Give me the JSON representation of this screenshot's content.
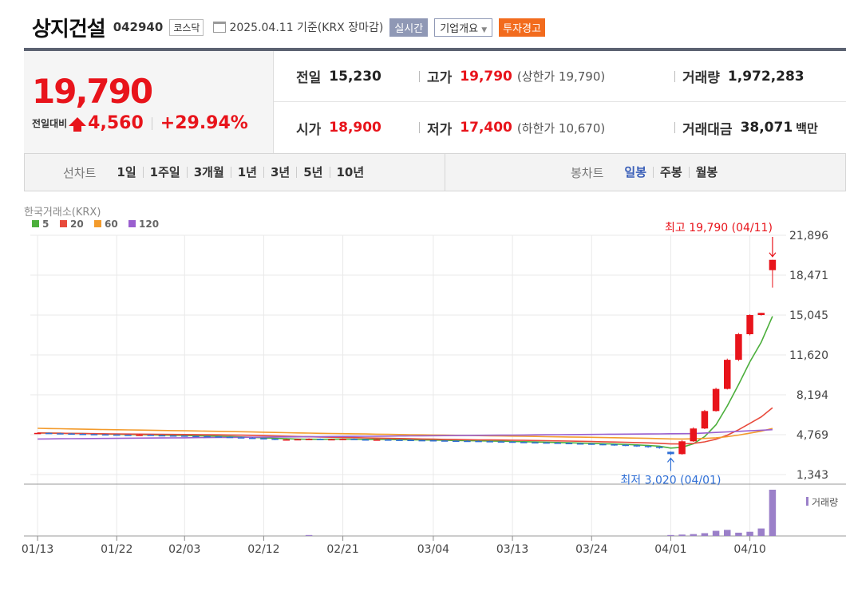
{
  "header": {
    "name": "상지건설",
    "code": "042940",
    "market": "코스닥",
    "date_text": "2025.04.11  기준(KRX 장마감)",
    "realtime_label": "실시간",
    "corp_label": "기업개요",
    "warning_label": "투자경고"
  },
  "price": {
    "current": "19,790",
    "change_label": "전일대비",
    "change": "4,560",
    "change_pct": "+29.94%"
  },
  "stats": {
    "prev_label": "전일",
    "prev": "15,230",
    "high_label": "고가",
    "high": "19,790",
    "upper_limit": "(상한가 19,790)",
    "volume_label": "거래량",
    "volume": "1,972,283",
    "open_label": "시가",
    "open": "18,900",
    "low_label": "저가",
    "low": "17,400",
    "lower_limit": "(하한가 10,670)",
    "amount_label": "거래대금",
    "amount": "38,071",
    "amount_unit": "백만"
  },
  "tabs": {
    "line_label": "선차트",
    "line_items": [
      "1일",
      "1주일",
      "3개월",
      "1년",
      "3년",
      "5년",
      "10년"
    ],
    "candle_label": "봉차트",
    "candle_items": [
      "일봉",
      "주봉",
      "월봉"
    ],
    "candle_active": 0
  },
  "chart_data": {
    "type": "candlestick",
    "source_label": "한국거래소(KRX)",
    "legend": [
      {
        "name": "5",
        "color": "#4caf3c"
      },
      {
        "name": "20",
        "color": "#e84a3c"
      },
      {
        "name": "60",
        "color": "#f39b2c"
      },
      {
        "name": "120",
        "color": "#9a5fcf"
      }
    ],
    "y_ticks": [
      "21,896",
      "18,471",
      "15,045",
      "11,620",
      "8,194",
      "4,769",
      "1,343"
    ],
    "y_tick_values": [
      21896,
      18471,
      15045,
      11620,
      8194,
      4769,
      1343
    ],
    "ylim": [
      1343,
      21896
    ],
    "x_labels": [
      "01/13",
      "01/22",
      "02/03",
      "02/12",
      "02/21",
      "03/04",
      "03/13",
      "03/24",
      "04/01",
      "04/10"
    ],
    "x_label_index": [
      0,
      7,
      13,
      20,
      27,
      35,
      42,
      49,
      56,
      63
    ],
    "high_annot": "최고 19,790 (04/11)",
    "low_annot": "최저 3,020 (04/01)",
    "volume_label": "거래량",
    "up_color": "#e8141b",
    "down_color": "#2f6fd6",
    "candles": [
      [
        4900,
        4950,
        4850,
        4920
      ],
      [
        4920,
        4960,
        4870,
        4890
      ],
      [
        4890,
        4930,
        4840,
        4870
      ],
      [
        4870,
        4900,
        4800,
        4840
      ],
      [
        4840,
        4880,
        4780,
        4820
      ],
      [
        4820,
        4860,
        4760,
        4800
      ],
      [
        4800,
        4840,
        4740,
        4780
      ],
      [
        4780,
        4820,
        4720,
        4760
      ],
      [
        4760,
        4800,
        4700,
        4740
      ],
      [
        4740,
        4800,
        4700,
        4760
      ],
      [
        4760,
        4790,
        4690,
        4720
      ],
      [
        4720,
        4760,
        4660,
        4700
      ],
      [
        4700,
        4740,
        4640,
        4690
      ],
      [
        4690,
        4720,
        4620,
        4660
      ],
      [
        4660,
        4700,
        4600,
        4640
      ],
      [
        4640,
        4690,
        4590,
        4620
      ],
      [
        4620,
        4650,
        4540,
        4580
      ],
      [
        4580,
        4620,
        4500,
        4540
      ],
      [
        4540,
        4580,
        4460,
        4500
      ],
      [
        4500,
        4560,
        4420,
        4460
      ],
      [
        4460,
        4500,
        4380,
        4420
      ],
      [
        4420,
        4460,
        4300,
        4340
      ],
      [
        4340,
        4400,
        4280,
        4360
      ],
      [
        4360,
        4420,
        4300,
        4380
      ],
      [
        4380,
        4450,
        4320,
        4400
      ],
      [
        4400,
        4440,
        4320,
        4360
      ],
      [
        4360,
        4420,
        4300,
        4380
      ],
      [
        4380,
        4440,
        4320,
        4400
      ],
      [
        4400,
        4440,
        4330,
        4360
      ],
      [
        4360,
        4400,
        4300,
        4340
      ],
      [
        4340,
        4390,
        4280,
        4350
      ],
      [
        4350,
        4400,
        4290,
        4330
      ],
      [
        4330,
        4380,
        4270,
        4320
      ],
      [
        4320,
        4370,
        4260,
        4300
      ],
      [
        4300,
        4350,
        4240,
        4290
      ],
      [
        4290,
        4330,
        4220,
        4270
      ],
      [
        4270,
        4320,
        4200,
        4250
      ],
      [
        4250,
        4300,
        4190,
        4240
      ],
      [
        4240,
        4290,
        4180,
        4230
      ],
      [
        4230,
        4270,
        4160,
        4210
      ],
      [
        4210,
        4260,
        4140,
        4190
      ],
      [
        4190,
        4240,
        4120,
        4170
      ],
      [
        4170,
        4220,
        4100,
        4140
      ],
      [
        4140,
        4190,
        4070,
        4120
      ],
      [
        4120,
        4170,
        4050,
        4100
      ],
      [
        4100,
        4150,
        4030,
        4080
      ],
      [
        4080,
        4130,
        4000,
        4050
      ],
      [
        4050,
        4100,
        3960,
        4020
      ],
      [
        4020,
        4070,
        3940,
        4000
      ],
      [
        4000,
        4050,
        3900,
        3960
      ],
      [
        3960,
        4020,
        3860,
        3940
      ],
      [
        3940,
        3990,
        3820,
        3900
      ],
      [
        3900,
        3960,
        3780,
        3860
      ],
      [
        3860,
        3910,
        3720,
        3800
      ],
      [
        3800,
        3850,
        3640,
        3720
      ],
      [
        3720,
        3780,
        3560,
        3620
      ],
      [
        3300,
        3320,
        3020,
        3100
      ],
      [
        3100,
        4300,
        3050,
        4200
      ],
      [
        4200,
        5400,
        4150,
        5300
      ],
      [
        5300,
        6900,
        5250,
        6800
      ],
      [
        6800,
        8800,
        6750,
        8700
      ],
      [
        8700,
        11300,
        8650,
        11200
      ],
      [
        11200,
        13500,
        11100,
        13400
      ],
      [
        13400,
        15100,
        13300,
        15045
      ],
      [
        15045,
        15230,
        15000,
        15230
      ],
      [
        18900,
        19790,
        17400,
        19790
      ]
    ],
    "volumes": [
      0,
      0,
      0,
      0,
      0,
      0,
      0,
      0,
      0,
      0,
      0,
      0,
      0,
      0,
      0,
      0,
      0,
      0,
      0,
      0,
      0,
      0,
      0,
      0,
      40,
      0,
      0,
      0,
      0,
      0,
      0,
      0,
      0,
      0,
      0,
      0,
      0,
      0,
      0,
      0,
      0,
      0,
      0,
      0,
      0,
      0,
      0,
      0,
      0,
      0,
      0,
      0,
      0,
      0,
      0,
      0,
      40,
      60,
      80,
      120,
      220,
      260,
      140,
      180,
      320,
      1972
    ]
  }
}
